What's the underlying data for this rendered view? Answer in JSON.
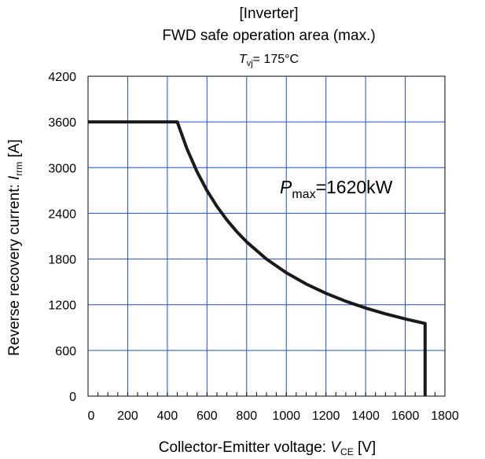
{
  "chart_data": {
    "type": "line",
    "title": "[Inverter]",
    "subtitle": "FWD safe operation area (max.)",
    "condition": {
      "symbol": "T",
      "subscript": "vj",
      "text": "= 175°C"
    },
    "xlabel": {
      "text": "Collector-Emitter voltage: ",
      "symbol": "V",
      "subscript": "CE",
      "unit": " [V]"
    },
    "ylabel": {
      "text": "Reverse recovery current: ",
      "symbol": "I",
      "subscript": "rrm",
      "unit": "  [A]"
    },
    "xlim": [
      0,
      1800
    ],
    "ylim": [
      0,
      4200
    ],
    "xticks": [
      0,
      200,
      400,
      600,
      800,
      1000,
      1200,
      1400,
      1600,
      1800
    ],
    "yticks": [
      0,
      600,
      1200,
      1800,
      2400,
      3000,
      3600,
      4200
    ],
    "grid": true,
    "annotation": {
      "symbol": "P",
      "subscript": "max",
      "text": "=1620kW"
    },
    "series": [
      {
        "color": "#1a1a1a",
        "x": [
          0,
          450,
          500,
          550,
          600,
          650,
          700,
          750,
          800,
          900,
          1000,
          1100,
          1200,
          1300,
          1400,
          1500,
          1600,
          1700,
          1700
        ],
        "y": [
          3600,
          3600,
          3240,
          2945,
          2700,
          2492,
          2314,
          2160,
          2025,
          1800,
          1620,
          1473,
          1350,
          1246,
          1157,
          1080,
          1013,
          953,
          0
        ]
      }
    ],
    "colors": {
      "grid": "#1f4fcf",
      "axis": "#000000",
      "curve": "#1a1a1a"
    }
  }
}
